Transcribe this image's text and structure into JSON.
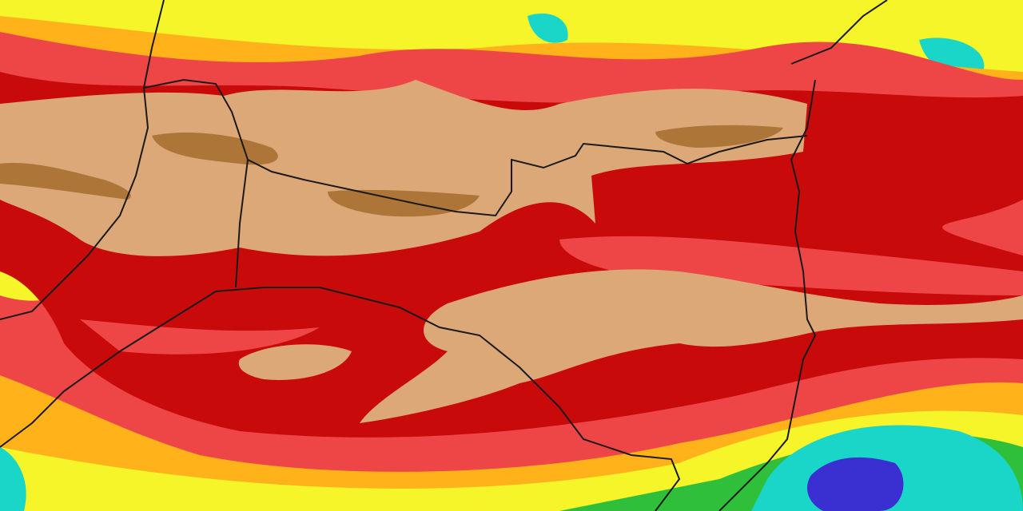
{
  "map": {
    "type": "precipitation-contour-map",
    "colors": {
      "blue": "#3a2fd0",
      "cyan": "#19d6c8",
      "green": "#2fbf3a",
      "light_green": "#7fe03a",
      "yellow": "#f5f52a",
      "orange": "#ffb21a",
      "light_red": "#ee4646",
      "dark_red": "#c80a0a",
      "tan": "#dca878",
      "brown": "#ad7638",
      "border": "#1a1a1a"
    }
  }
}
